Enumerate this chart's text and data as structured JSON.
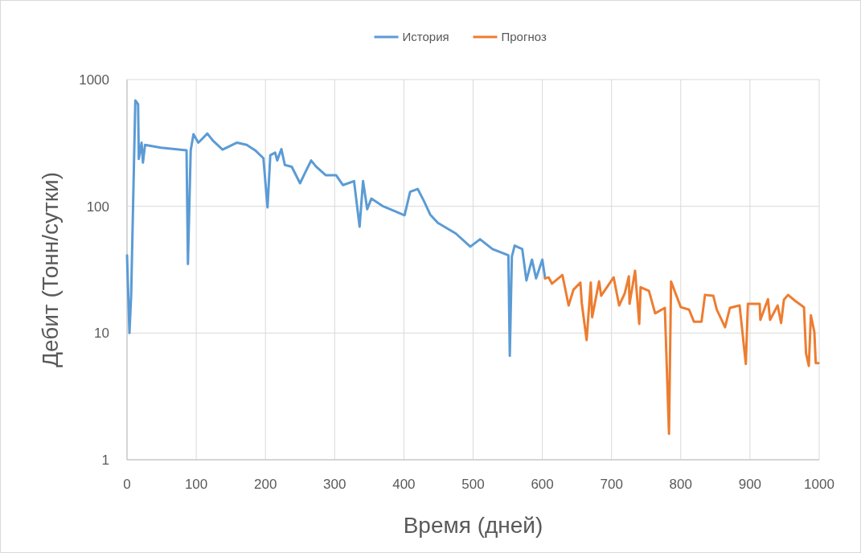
{
  "chart_data": {
    "type": "line",
    "xlabel": "Время (дней)",
    "ylabel": "Дебит (Тонн/сутки)",
    "log": "y",
    "grid": true,
    "legend": "top",
    "marker": "none",
    "line_style": "solid",
    "xlim": [
      0,
      1000
    ],
    "xticks": [
      0,
      100,
      200,
      300,
      400,
      500,
      600,
      700,
      800,
      900,
      1000
    ],
    "ylim": [
      1,
      1000
    ],
    "yticks": [
      1,
      10,
      100,
      1000
    ],
    "series": [
      {
        "name": "История",
        "color": "#5b9bd5",
        "x": [
          0,
          3.5,
          6,
          12,
          16,
          17,
          21,
          23,
          26,
          49,
          86,
          88,
          92,
          96,
          103,
          116,
          124,
          138,
          159,
          173,
          185,
          197,
          203,
          207,
          214,
          217,
          223,
          228,
          238,
          250,
          256,
          266,
          273,
          287,
          302,
          312,
          328,
          336,
          341,
          347,
          353,
          370,
          401,
          409,
          420,
          429,
          438,
          449,
          475,
          496,
          510,
          528,
          551,
          553,
          556,
          560,
          571,
          577,
          585,
          591,
          600,
          604
        ],
        "values": [
          41,
          10,
          20,
          684,
          640,
          236,
          318,
          221,
          305,
          290,
          277,
          35,
          277,
          370,
          318,
          375,
          330,
          280,
          318,
          305,
          277,
          240,
          98,
          253,
          265,
          230,
          283,
          212,
          205,
          152,
          178,
          230,
          206,
          176,
          176,
          147,
          158,
          69,
          158,
          95,
          115,
          100,
          85,
          130,
          137,
          110,
          86,
          74,
          61,
          48,
          55,
          46,
          41,
          6.6,
          40,
          49,
          46,
          26,
          38,
          27,
          38,
          27
        ]
      },
      {
        "name": "Прогноз",
        "color": "#ed7d31",
        "x": [
          604,
          609,
          614,
          629,
          638,
          645,
          655,
          657,
          664,
          670,
          672,
          682,
          685,
          703,
          711,
          719,
          725,
          726,
          734,
          740,
          742,
          754,
          763,
          777,
          783,
          786,
          800,
          812,
          819,
          830,
          835,
          847,
          852,
          864,
          871,
          885,
          894,
          897,
          914,
          915,
          926,
          929,
          940,
          945,
          949,
          955,
          966,
          978,
          981,
          985,
          988,
          993,
          995,
          999
        ],
        "values": [
          27,
          27.5,
          24.5,
          28.7,
          16.5,
          22,
          25,
          17.2,
          8.8,
          25,
          13.3,
          25.6,
          19.7,
          27.5,
          16.5,
          20.5,
          28,
          17,
          31,
          11.8,
          23,
          21.5,
          14.3,
          15.8,
          1.6,
          25.5,
          16,
          15.3,
          12.3,
          12.3,
          20,
          19.7,
          15.3,
          11.1,
          15.8,
          16.5,
          5.7,
          17,
          17,
          12.7,
          18.5,
          12.7,
          16.5,
          12,
          18.3,
          20,
          17.8,
          16,
          6.9,
          5.5,
          13.8,
          10.2,
          5.8,
          5.8
        ]
      }
    ]
  }
}
